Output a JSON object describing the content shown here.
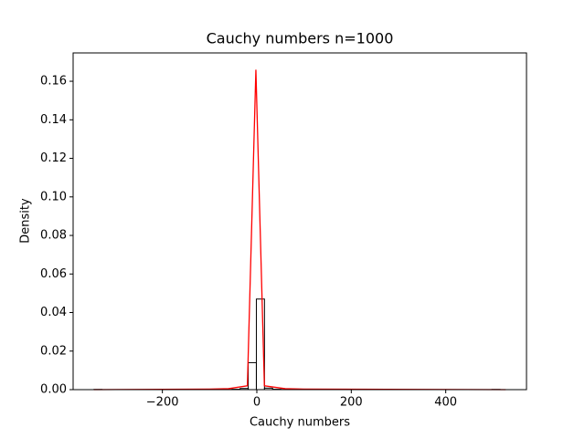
{
  "chart_data": {
    "type": "histogram",
    "title": "Cauchy numbers n=1000",
    "xlabel": "Cauchy numbers",
    "ylabel": "Density",
    "xlim": [
      -389,
      571
    ],
    "ylim": [
      0,
      0.1747
    ],
    "xticks": [
      {
        "value": -200,
        "label": "−200"
      },
      0,
      200,
      400
    ],
    "yticks": [
      {
        "value": 0,
        "label": "0.00"
      },
      {
        "value": 0.02,
        "label": "0.02"
      },
      {
        "value": 0.04,
        "label": "0.04"
      },
      {
        "value": 0.06,
        "label": "0.06"
      },
      {
        "value": 0.08,
        "label": "0.08"
      },
      {
        "value": 0.1,
        "label": "0.10"
      },
      {
        "value": 0.12,
        "label": "0.12"
      },
      {
        "value": 0.14,
        "label": "0.14"
      },
      {
        "value": 0.16,
        "label": "0.16"
      }
    ],
    "bins": [
      -345,
      -327.8,
      -310.6,
      -293.4,
      -276.2,
      -259,
      -241.8,
      -224.6,
      -207.4,
      -190.2,
      -173,
      -155.8,
      -138.6,
      -121.4,
      -104.2,
      -87,
      -69.8,
      -52.6,
      -35.4,
      -18.2,
      -1,
      16.2,
      33.4,
      50.6,
      67.8,
      85,
      102.2,
      119.4,
      136.6,
      153.8,
      171,
      188.2,
      205.4,
      222.6,
      239.8,
      257,
      274.2,
      291.4,
      308.6,
      325.8,
      343,
      360.2,
      377.4,
      394.6,
      411.8,
      429,
      446.2,
      463.4,
      480.6,
      497.8,
      515
    ],
    "values": [
      0.0001,
      0,
      0,
      0,
      0,
      0,
      0,
      0,
      0,
      0,
      0,
      0,
      0,
      0,
      0,
      0,
      0.0001,
      0.0002,
      0.0006,
      0.014,
      0.047,
      0.0008,
      0.0002,
      0.0001,
      0,
      0,
      0,
      0,
      0,
      0,
      0,
      0,
      0,
      0,
      0,
      0,
      0,
      0,
      0,
      0,
      0,
      0,
      0,
      0,
      0,
      0,
      0,
      0,
      0,
      0.0001
    ],
    "edgecolor": "#000000",
    "overlay": {
      "type": "line",
      "color": "#ff0000",
      "x": [
        -345,
        -100,
        -60,
        -20,
        -2,
        16,
        60,
        100,
        527
      ],
      "values": [
        0,
        0.0003,
        0.0005,
        0.002,
        0.166,
        0.002,
        0.0005,
        0.0003,
        0
      ]
    }
  }
}
